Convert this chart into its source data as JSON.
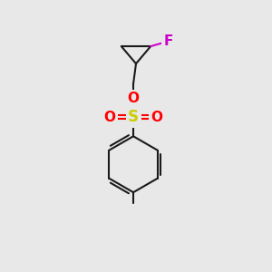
{
  "background_color": "#e8e8e8",
  "bond_color": "#1a1a1a",
  "bond_width": 1.5,
  "atom_colors": {
    "F": "#cc00cc",
    "O": "#ff0000",
    "S": "#cccc00",
    "C": "#1a1a1a"
  },
  "figsize": [
    3.0,
    3.0
  ],
  "dpi": 100
}
